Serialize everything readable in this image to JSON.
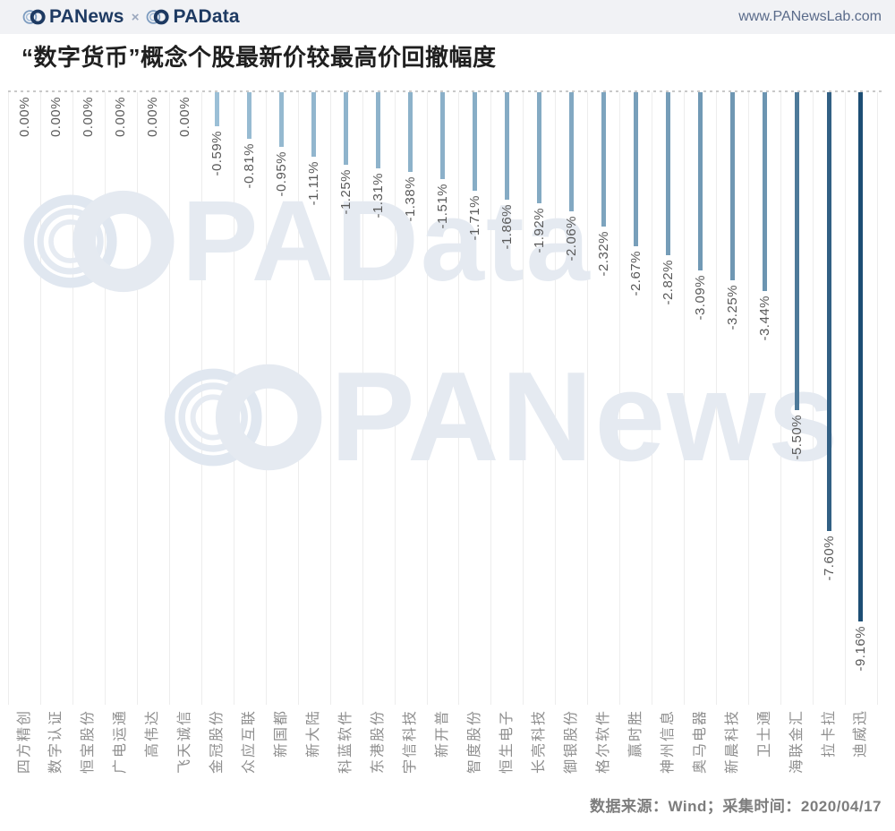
{
  "header": {
    "brand_primary": "PANews",
    "separator": "×",
    "brand_secondary": "PAData",
    "url": "www.PANewsLab.com"
  },
  "title": "“数字货币”概念个股最新价较最高价回撤幅度",
  "watermarks": {
    "first": "PAData",
    "second": "PANews"
  },
  "footer": {
    "text": "数据来源：Wind；采集时间：2020/04/17"
  },
  "chart_data": {
    "type": "bar",
    "orientation": "vertical-downward",
    "title": "“数字货币”概念个股最新价较最高价回撤幅度",
    "unit": "%",
    "categories": [
      "四方精创",
      "数字认证",
      "恒宝股份",
      "广电运通",
      "高伟达",
      "飞天诚信",
      "金冠股份",
      "众应互联",
      "新国都",
      "新大陆",
      "科蓝软件",
      "东港股份",
      "宇信科技",
      "新开普",
      "智度股份",
      "恒生电子",
      "长亮科技",
      "御银股份",
      "格尔软件",
      "赢时胜",
      "神州信息",
      "奥马电器",
      "新晨科技",
      "卫士通",
      "海联金汇",
      "拉卡拉",
      "迪威迅"
    ],
    "values": [
      0.0,
      0.0,
      0.0,
      0.0,
      0.0,
      0.0,
      -0.59,
      -0.81,
      -0.95,
      -1.11,
      -1.25,
      -1.31,
      -1.38,
      -1.51,
      -1.71,
      -1.86,
      -1.92,
      -2.06,
      -2.32,
      -2.67,
      -2.82,
      -3.09,
      -3.25,
      -3.44,
      -5.5,
      -7.6,
      -9.16
    ],
    "labels": [
      "0.00%",
      "0.00%",
      "0.00%",
      "0.00%",
      "0.00%",
      "0.00%",
      "-0.59%",
      "-0.81%",
      "-0.95%",
      "-1.11%",
      "-1.25%",
      "-1.31%",
      "-1.38%",
      "-1.51%",
      "-1.71%",
      "-1.86%",
      "-1.92%",
      "-2.06%",
      "-2.32%",
      "-2.67%",
      "-2.82%",
      "-3.09%",
      "-3.25%",
      "-3.44%",
      "-5.50%",
      "-7.60%",
      "-9.16%"
    ],
    "xlabel": "",
    "ylabel": "",
    "ylim": [
      -10.6,
      0
    ],
    "grid": "vertical-category-separators",
    "legend": "none",
    "bar_color_ramp": [
      "#a9cbe0",
      "#1d4e74"
    ],
    "source": "Wind",
    "collected_date": "2020/04/17"
  }
}
